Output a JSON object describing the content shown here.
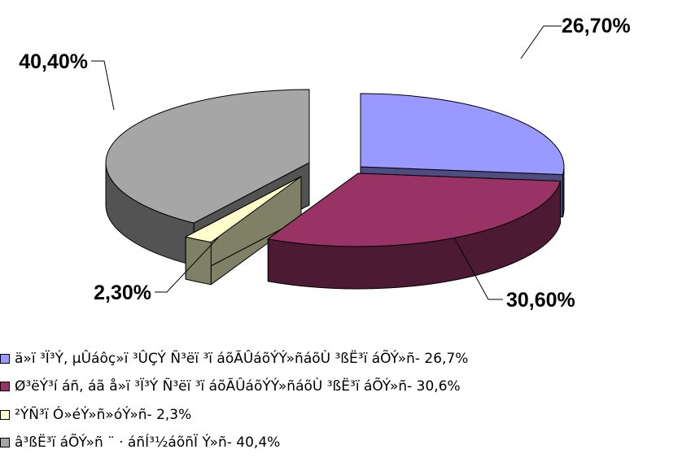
{
  "chart_data": {
    "type": "pie",
    "style": "3d exploded pie",
    "slices": [
      {
        "legend": "ä»ï ³Ï³Ý, µÛáôç»ï ³ÛÇÝ Ñ³ëï ³ï áõÃÛáõÝÝ»ñáõÙ ³ßË³ï áÕÝ»ñ- 26,7%",
        "value": 26.7,
        "data_label": "26,70%",
        "color": "#9999ff",
        "side_color": "#4d4d80"
      },
      {
        "legend": "Ø³ëÝ³í áñ, áã å»ï ³Ï³Ý Ñ³ëï ³ï áõÃÛáõÝÝ»ñáõÙ ³ßË³ï áÕÝ»ñ- 30,6%",
        "value": 30.6,
        "data_label": "30,60%",
        "color": "#993366",
        "side_color": "#4d1a33"
      },
      {
        "legend": "²ÝÑ³ï  Ó»éÝ»ñ»óÝ»ñ- 2,3%",
        "value": 2.3,
        "data_label": "2,30%",
        "color": "#ffffcc",
        "side_color": "#808066"
      },
      {
        "legend": "â³ßË³ï áÕÝ»ñ ¨ · áñÍ³½áõñÏ Ý»ñ- 40,4%",
        "value": 40.4,
        "data_label": "40,40%",
        "color": "#a6a6a6",
        "side_color": "#535353"
      }
    ],
    "legend_position": "bottom-left"
  }
}
